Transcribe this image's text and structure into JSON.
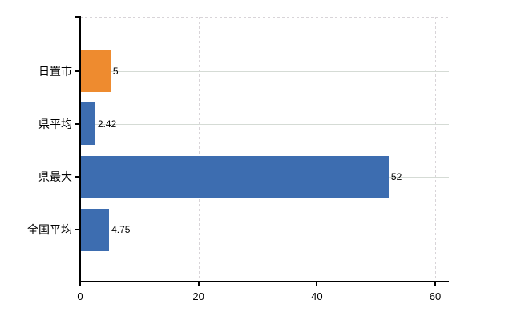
{
  "chart_data": {
    "type": "bar",
    "orientation": "horizontal",
    "title": "",
    "xlabel": "",
    "ylabel": "",
    "categories": [
      "日置市",
      "県平均",
      "県最大",
      "全国平均"
    ],
    "values": [
      5,
      2.42,
      52,
      4.75
    ],
    "value_labels": [
      "5",
      "2.42",
      "52",
      "4.75"
    ],
    "series_colors": [
      "#ee8b2f",
      "#3d6db0",
      "#3d6db0",
      "#3d6db0"
    ],
    "x_ticks": [
      0,
      20,
      40,
      60
    ],
    "x_tick_labels": [
      "0",
      "20",
      "40",
      "60"
    ],
    "xlim": [
      0,
      62.3
    ],
    "grid": {
      "vertical_gridlines": "dashed",
      "horizontal_gridlines": "solid",
      "top_border": "dashed"
    },
    "legend": null,
    "colors": {
      "bar_orange": "#ee8b2f",
      "bar_blue": "#3d6db0",
      "axis": "#000000",
      "gridline": "#d6dad6",
      "background": "#ffffff"
    }
  }
}
